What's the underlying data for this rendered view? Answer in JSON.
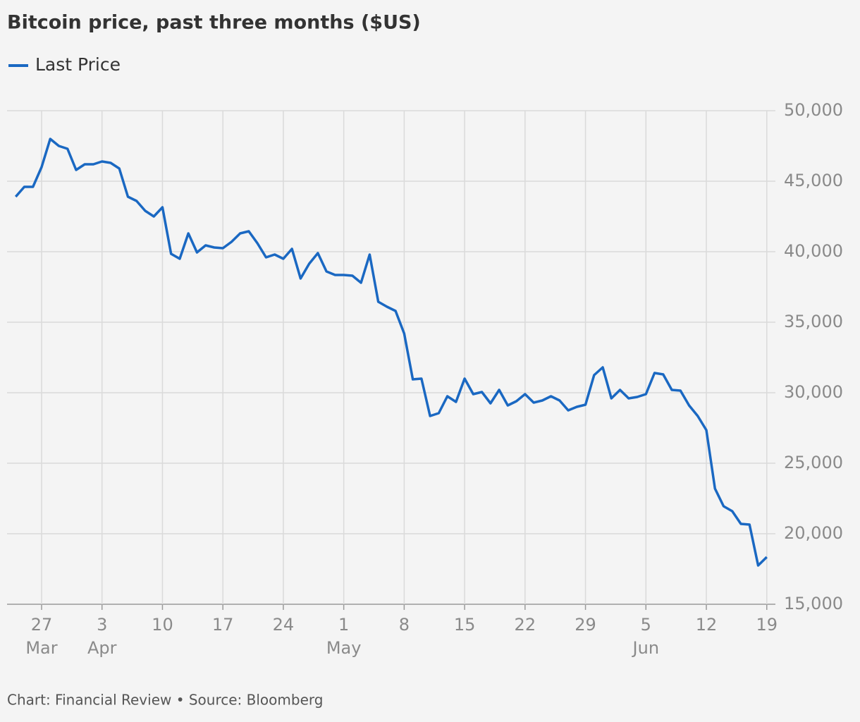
{
  "chart_data": {
    "type": "line",
    "title": "Bitcoin price, past three months ($US)",
    "source": "Chart: Financial Review • Source: Bloomberg",
    "x": [
      "03-24",
      "03-25",
      "03-26",
      "03-27",
      "03-28",
      "03-29",
      "03-30",
      "03-31",
      "04-01",
      "04-02",
      "04-03",
      "04-04",
      "04-05",
      "04-06",
      "04-07",
      "04-08",
      "04-09",
      "04-10",
      "04-11",
      "04-12",
      "04-13",
      "04-14",
      "04-15",
      "04-16",
      "04-17",
      "04-18",
      "04-19",
      "04-20",
      "04-21",
      "04-22",
      "04-23",
      "04-24",
      "04-25",
      "04-26",
      "04-27",
      "04-28",
      "04-29",
      "04-30",
      "05-01",
      "05-02",
      "05-03",
      "05-04",
      "05-05",
      "05-06",
      "05-07",
      "05-08",
      "05-09",
      "05-10",
      "05-11",
      "05-12",
      "05-13",
      "05-14",
      "05-15",
      "05-16",
      "05-17",
      "05-18",
      "05-19",
      "05-20",
      "05-21",
      "05-22",
      "05-23",
      "05-24",
      "05-25",
      "05-26",
      "05-27",
      "05-28",
      "05-29",
      "05-30",
      "05-31",
      "06-01",
      "06-02",
      "06-03",
      "06-04",
      "06-05",
      "06-06",
      "06-07",
      "06-08",
      "06-09",
      "06-10",
      "06-11",
      "06-12",
      "06-13",
      "06-14",
      "06-15",
      "06-16",
      "06-17",
      "06-18",
      "06-19"
    ],
    "series": [
      {
        "name": "Last Price",
        "color": "#1a68c2",
        "values": [
          43900,
          44600,
          44600,
          46000,
          48000,
          47500,
          47300,
          45800,
          46200,
          46200,
          46400,
          46300,
          45900,
          43900,
          43600,
          42900,
          42500,
          43150,
          39850,
          39500,
          41300,
          39950,
          40450,
          40300,
          40250,
          40700,
          41300,
          41450,
          40600,
          39600,
          39800,
          39500,
          40200,
          38100,
          39150,
          39900,
          38600,
          38350,
          38350,
          38300,
          37800,
          39800,
          36450,
          36100,
          35800,
          34200,
          30950,
          31000,
          28350,
          28550,
          29750,
          29350,
          31000,
          29900,
          30050,
          29250,
          30200,
          29100,
          29400,
          29900,
          29300,
          29450,
          29750,
          29450,
          28750,
          29000,
          29150,
          31250,
          31800,
          29600,
          30200,
          29600,
          29700,
          29900,
          31400,
          31300,
          30200,
          30150,
          29100,
          28350,
          27350,
          23200,
          21950,
          21600,
          20700,
          20650,
          17750,
          18350
        ]
      }
    ],
    "xlim": [
      "03-23",
      "06-20"
    ],
    "xticks": [
      {
        "value": "03-27",
        "label": "27",
        "month": "Mar"
      },
      {
        "value": "04-03",
        "label": "3",
        "month": "Apr"
      },
      {
        "value": "04-10",
        "label": "10"
      },
      {
        "value": "04-17",
        "label": "17"
      },
      {
        "value": "04-24",
        "label": "24"
      },
      {
        "value": "05-01",
        "label": "1",
        "month": "May"
      },
      {
        "value": "05-08",
        "label": "8"
      },
      {
        "value": "05-15",
        "label": "15"
      },
      {
        "value": "05-22",
        "label": "22"
      },
      {
        "value": "05-29",
        "label": "29"
      },
      {
        "value": "06-05",
        "label": "5",
        "month": "Jun"
      },
      {
        "value": "06-12",
        "label": "12"
      },
      {
        "value": "06-19",
        "label": "19"
      }
    ],
    "ylim": [
      15000,
      50000
    ],
    "yticks": [
      {
        "value": 15000,
        "label": "15,000"
      },
      {
        "value": 20000,
        "label": "20,000"
      },
      {
        "value": 25000,
        "label": "25,000"
      },
      {
        "value": 30000,
        "label": "30,000"
      },
      {
        "value": 35000,
        "label": "35,000"
      },
      {
        "value": 40000,
        "label": "40,000"
      },
      {
        "value": 45000,
        "label": "45,000"
      },
      {
        "value": 50000,
        "label": "50,000"
      }
    ],
    "grid": true,
    "legend": "top-left"
  }
}
